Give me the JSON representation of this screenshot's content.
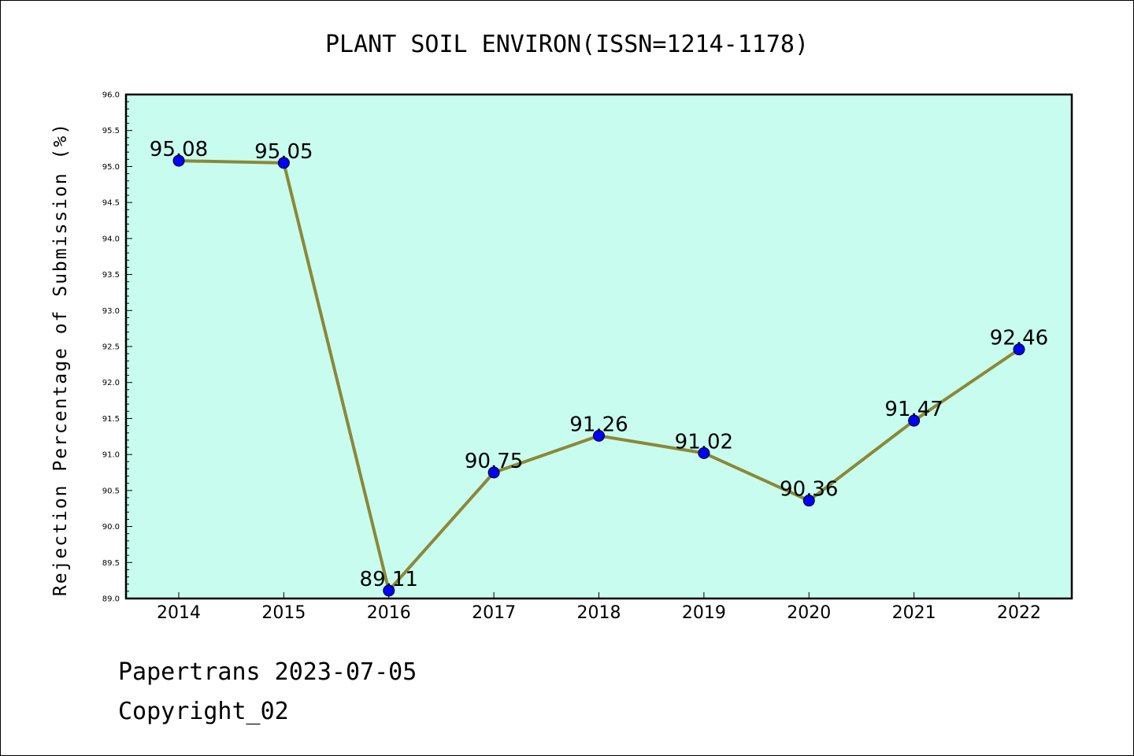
{
  "chart_data": {
    "type": "line",
    "title": "PLANT SOIL ENVIRON(ISSN=1214-1178)",
    "ylabel": "Rejection Percentage of Submission (%)",
    "xlabel": "",
    "categories": [
      "2014",
      "2015",
      "2016",
      "2017",
      "2018",
      "2019",
      "2020",
      "2021",
      "2022"
    ],
    "series": [
      {
        "values": [
          95.08,
          95.05,
          89.11,
          90.75,
          91.26,
          91.02,
          90.36,
          91.47,
          92.46
        ],
        "labels": [
          "95.08",
          "95.05",
          "89.11",
          "90.75",
          "91.26",
          "91.02",
          "90.36",
          "91.47",
          "92.46"
        ]
      }
    ],
    "ylim": [
      89.0,
      96.0
    ],
    "yticks": [
      "89.0",
      "89.5",
      "90.0",
      "90.5",
      "91.0",
      "91.5",
      "92.0",
      "92.5",
      "93.0",
      "93.5",
      "94.0",
      "94.5",
      "95.0",
      "95.5",
      "96.0"
    ],
    "grid": false,
    "colors": {
      "plot_background": "#c8fcee",
      "line": "#8b8838",
      "marker": "#0000ff"
    }
  },
  "footer": {
    "line1": "Papertrans 2023-07-05",
    "line2": "Copyright_02"
  }
}
